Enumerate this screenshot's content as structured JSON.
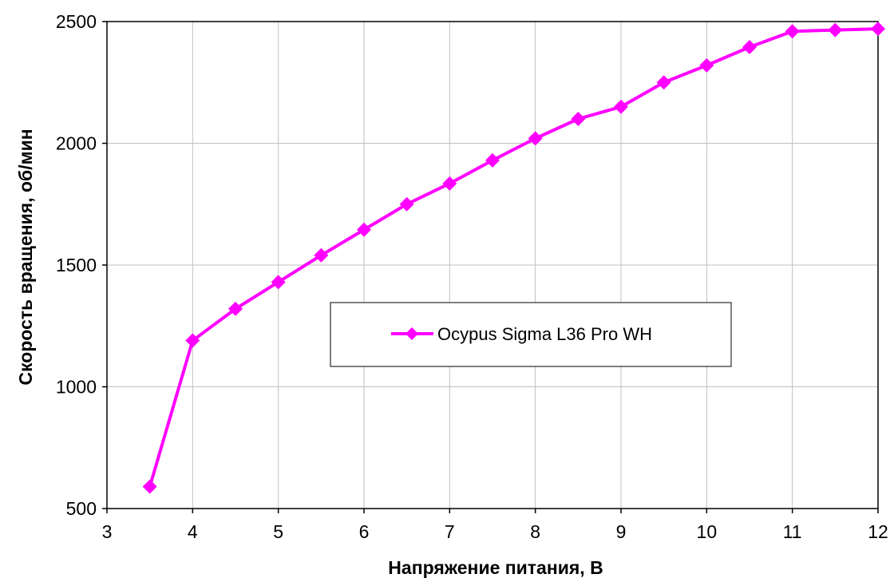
{
  "chart_data": {
    "type": "line",
    "title": "",
    "xlabel": "Напряжение питания, В",
    "ylabel": "Скорость вращения, об/мин",
    "xlim": [
      3,
      12
    ],
    "ylim": [
      500,
      2500
    ],
    "x_ticks": [
      3,
      4,
      5,
      6,
      7,
      8,
      9,
      10,
      11,
      12
    ],
    "y_ticks": [
      500,
      1000,
      1500,
      2000,
      2500
    ],
    "grid": true,
    "legend_position": "center",
    "series": [
      {
        "name": "Ocypus Sigma L36 Pro WH",
        "color": "#ff00ff",
        "marker": "diamond",
        "x": [
          3.5,
          4,
          4.5,
          5,
          5.5,
          6,
          6.5,
          7,
          7.5,
          8,
          8.5,
          9,
          9.5,
          10,
          10.5,
          11,
          11.5,
          12
        ],
        "y": [
          590,
          1190,
          1320,
          1430,
          1540,
          1645,
          1750,
          1835,
          1930,
          2020,
          2100,
          2150,
          2250,
          2320,
          2395,
          2460,
          2465,
          2470
        ]
      }
    ]
  }
}
